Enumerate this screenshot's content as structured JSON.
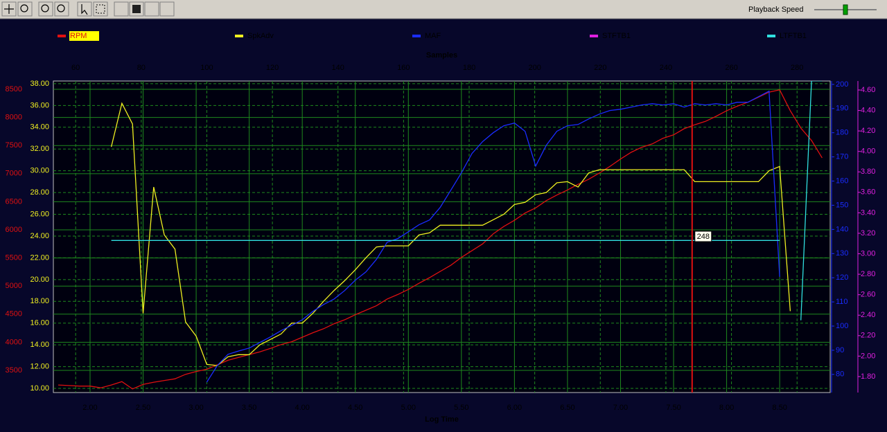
{
  "toolbar": {
    "playback_label": "Playback Speed"
  },
  "chart_data": {
    "type": "line",
    "xlabel": "Log Time",
    "x2label": "Samples",
    "x": [
      1.7,
      1.8,
      1.9,
      2.0,
      2.1,
      2.2,
      2.3,
      2.4,
      2.5,
      2.6,
      2.7,
      2.8,
      2.9,
      3.0,
      3.1,
      3.2,
      3.3,
      3.4,
      3.5,
      3.6,
      3.7,
      3.8,
      3.9,
      4.0,
      4.1,
      4.2,
      4.3,
      4.4,
      4.5,
      4.6,
      4.7,
      4.8,
      4.9,
      5.0,
      5.1,
      5.2,
      5.3,
      5.4,
      5.5,
      5.6,
      5.7,
      5.8,
      5.9,
      6.0,
      6.1,
      6.2,
      6.3,
      6.4,
      6.5,
      6.6,
      6.7,
      6.8,
      6.9,
      7.0,
      7.1,
      7.2,
      7.3,
      7.4,
      7.5,
      7.6,
      7.7,
      7.8,
      7.9,
      8.0,
      8.1,
      8.2,
      8.3,
      8.4,
      8.5,
      8.6,
      8.7,
      8.8,
      8.9
    ],
    "xlim": [
      1.654,
      8.976
    ],
    "xticks": [
      {
        "value": 2,
        "label": "2.00"
      },
      {
        "value": 2.5,
        "label": "2.50"
      },
      {
        "value": 3,
        "label": "3.00"
      },
      {
        "value": 3.5,
        "label": "3.50"
      },
      {
        "value": 4,
        "label": "4.00"
      },
      {
        "value": 4.5,
        "label": "4.50"
      },
      {
        "value": 5,
        "label": "5.00"
      },
      {
        "value": 5.5,
        "label": "5.50"
      },
      {
        "value": 6,
        "label": "6.00"
      },
      {
        "value": 6.5,
        "label": "6.50"
      },
      {
        "value": 7,
        "label": "7.00"
      },
      {
        "value": 7.5,
        "label": "7.50"
      },
      {
        "value": 8,
        "label": "8.00"
      },
      {
        "value": 8.5,
        "label": "8.50"
      }
    ],
    "x2lim": [
      53.2,
      290.1
    ],
    "x2ticks": [
      60,
      80,
      100,
      120,
      140,
      160,
      180,
      200,
      220,
      240,
      260,
      280
    ],
    "cursor": 248,
    "cursor_color": "#e01010",
    "ylim": [
      3106,
      8648
    ],
    "yticks": [
      3500,
      4000,
      4500,
      5000,
      5500,
      6000,
      6500,
      7000,
      7500,
      8000,
      8500
    ],
    "y2lim": [
      9.62,
      38.25
    ],
    "y2ticks": [
      {
        "value": 10,
        "label": "10.00"
      },
      {
        "value": 12,
        "label": "12.00"
      },
      {
        "value": 14,
        "label": "14.00"
      },
      {
        "value": 16,
        "label": "16.00"
      },
      {
        "value": 18,
        "label": "18.00"
      },
      {
        "value": 20,
        "label": "20.00"
      },
      {
        "value": 22,
        "label": "22.00"
      },
      {
        "value": 24,
        "label": "24.00"
      },
      {
        "value": 26,
        "label": "26.00"
      },
      {
        "value": 28,
        "label": "28.00"
      },
      {
        "value": 30,
        "label": "30.00"
      },
      {
        "value": 32,
        "label": "32.00"
      },
      {
        "value": 34,
        "label": "34.00"
      },
      {
        "value": 36,
        "label": "36.00"
      },
      {
        "value": 38,
        "label": "38.00"
      }
    ],
    "y3lim": [
      72.5,
      201.4
    ],
    "y3ticks": [
      80,
      90,
      100,
      110,
      120,
      130,
      140,
      150,
      160,
      170,
      180,
      190,
      200
    ],
    "y4lim": [
      1.644,
      4.688
    ],
    "y4ticks": [
      {
        "value": 1.8,
        "label": "1.80"
      },
      {
        "value": 2,
        "label": "2.00"
      },
      {
        "value": 2.2,
        "label": "2.20"
      },
      {
        "value": 2.4,
        "label": "2.40"
      },
      {
        "value": 2.6,
        "label": "2.60"
      },
      {
        "value": 2.8,
        "label": "2.80"
      },
      {
        "value": 3,
        "label": "3.00"
      },
      {
        "value": 3.2,
        "label": "3.20"
      },
      {
        "value": 3.4,
        "label": "3.40"
      },
      {
        "value": 3.6,
        "label": "3.60"
      },
      {
        "value": 3.8,
        "label": "3.80"
      },
      {
        "value": 4,
        "label": "4.00"
      },
      {
        "value": 4.2,
        "label": "4.20"
      },
      {
        "value": 4.4,
        "label": "4.40"
      },
      {
        "value": 4.6,
        "label": "4.60"
      }
    ],
    "grid": true,
    "series": [
      {
        "name": "RPM",
        "color": "#e01010",
        "axis": "y",
        "values": [
          3240,
          3230,
          3220,
          3220,
          3190,
          3240,
          3300,
          3170,
          3250,
          3290,
          3320,
          3350,
          3430,
          3480,
          3520,
          3600,
          3680,
          3730,
          3780,
          3830,
          3890,
          3960,
          4010,
          4090,
          4170,
          4240,
          4330,
          4400,
          4490,
          4570,
          4650,
          4770,
          4850,
          4940,
          5050,
          5150,
          5260,
          5370,
          5510,
          5630,
          5750,
          5930,
          6060,
          6170,
          6300,
          6390,
          6520,
          6620,
          6710,
          6810,
          6900,
          7010,
          7130,
          7260,
          7380,
          7470,
          7530,
          7630,
          7690,
          7800,
          7870,
          7930,
          8020,
          8120,
          8200,
          8270,
          8360,
          8450,
          8490,
          8120,
          7810,
          7590,
          7280
        ]
      },
      {
        "name": "SpkAdv",
        "color": "#f0f020",
        "axis": "y2",
        "values": [
          null,
          null,
          null,
          null,
          null,
          32.2,
          36.2,
          34.3,
          16.9,
          28.5,
          24.1,
          22.8,
          16.1,
          14.8,
          12.2,
          12.1,
          12.9,
          13.1,
          13.1,
          14.0,
          14.5,
          15.0,
          16.0,
          16.0,
          16.9,
          18.0,
          19.0,
          19.9,
          20.9,
          22.0,
          23.0,
          23.1,
          23.1,
          23.1,
          24.1,
          24.3,
          25.0,
          25.0,
          25.0,
          25.0,
          25.0,
          25.5,
          26.0,
          26.9,
          27.1,
          27.8,
          28.0,
          28.9,
          29.0,
          28.5,
          29.8,
          30.1,
          30.1,
          30.1,
          30.1,
          30.1,
          30.1,
          30.1,
          30.1,
          30.1,
          29.0,
          29.0,
          29.0,
          29.0,
          29.0,
          29.0,
          29.0,
          30.0,
          30.4,
          17.1,
          null,
          null,
          null
        ]
      },
      {
        "name": "MAF",
        "color": "#1a2cff",
        "axis": "y3",
        "values": [
          null,
          null,
          null,
          null,
          null,
          null,
          null,
          null,
          null,
          null,
          null,
          null,
          null,
          null,
          76.8,
          83.7,
          88.3,
          89.7,
          90.9,
          93.2,
          95.5,
          98.1,
          100.3,
          102.6,
          106.1,
          108.9,
          111.2,
          114.7,
          119.0,
          122.4,
          127.6,
          134.7,
          136.2,
          139.0,
          141.9,
          143.9,
          149.1,
          156.2,
          163.4,
          171.4,
          176.3,
          180.0,
          182.9,
          184.0,
          180.6,
          166.2,
          174.8,
          180.6,
          182.9,
          183.4,
          185.7,
          187.7,
          189.2,
          189.7,
          190.6,
          191.5,
          192.0,
          191.5,
          192.0,
          190.6,
          192.0,
          191.5,
          192.0,
          191.5,
          192.6,
          192.6,
          194.9,
          197.2,
          120.4,
          null,
          null,
          null,
          null
        ]
      },
      {
        "name": "STFTB1",
        "color": "#e020e0",
        "axis": "y4",
        "values": [
          null,
          null,
          null,
          null,
          null,
          null,
          null,
          null,
          null,
          null,
          null,
          null,
          null,
          null,
          null,
          null,
          null,
          null,
          null,
          null,
          null,
          null,
          null,
          null,
          null,
          null,
          null,
          null,
          null,
          null,
          null,
          null,
          null,
          null,
          null,
          null,
          null,
          null,
          null,
          null,
          null,
          null,
          null,
          null,
          null,
          null,
          null,
          null,
          null,
          null,
          null,
          null,
          null,
          null,
          null,
          null,
          null,
          null,
          null,
          null,
          null,
          null,
          null,
          null,
          null,
          null,
          null,
          null,
          null,
          null,
          null,
          null,
          null
        ]
      },
      {
        "name": "LTFTB1",
        "color": "#30e0e0",
        "axis": "y4",
        "values": [
          null,
          null,
          null,
          null,
          null,
          3.13,
          3.13,
          3.13,
          3.13,
          3.13,
          3.13,
          3.13,
          3.13,
          3.13,
          3.13,
          3.13,
          3.13,
          3.13,
          3.13,
          3.13,
          3.13,
          3.13,
          3.13,
          3.13,
          3.13,
          3.13,
          3.13,
          3.13,
          3.13,
          3.13,
          3.13,
          3.13,
          3.13,
          3.13,
          3.13,
          3.13,
          3.13,
          3.13,
          3.13,
          3.13,
          3.13,
          3.13,
          3.13,
          3.13,
          3.13,
          3.13,
          3.13,
          3.13,
          3.13,
          3.13,
          3.13,
          3.13,
          3.13,
          3.13,
          3.13,
          3.13,
          3.13,
          3.13,
          3.13,
          3.13,
          3.13,
          3.13,
          3.13,
          3.13,
          3.13,
          3.13,
          3.13,
          3.13,
          3.13,
          null,
          2.35,
          4.69,
          4.69
        ]
      }
    ]
  }
}
